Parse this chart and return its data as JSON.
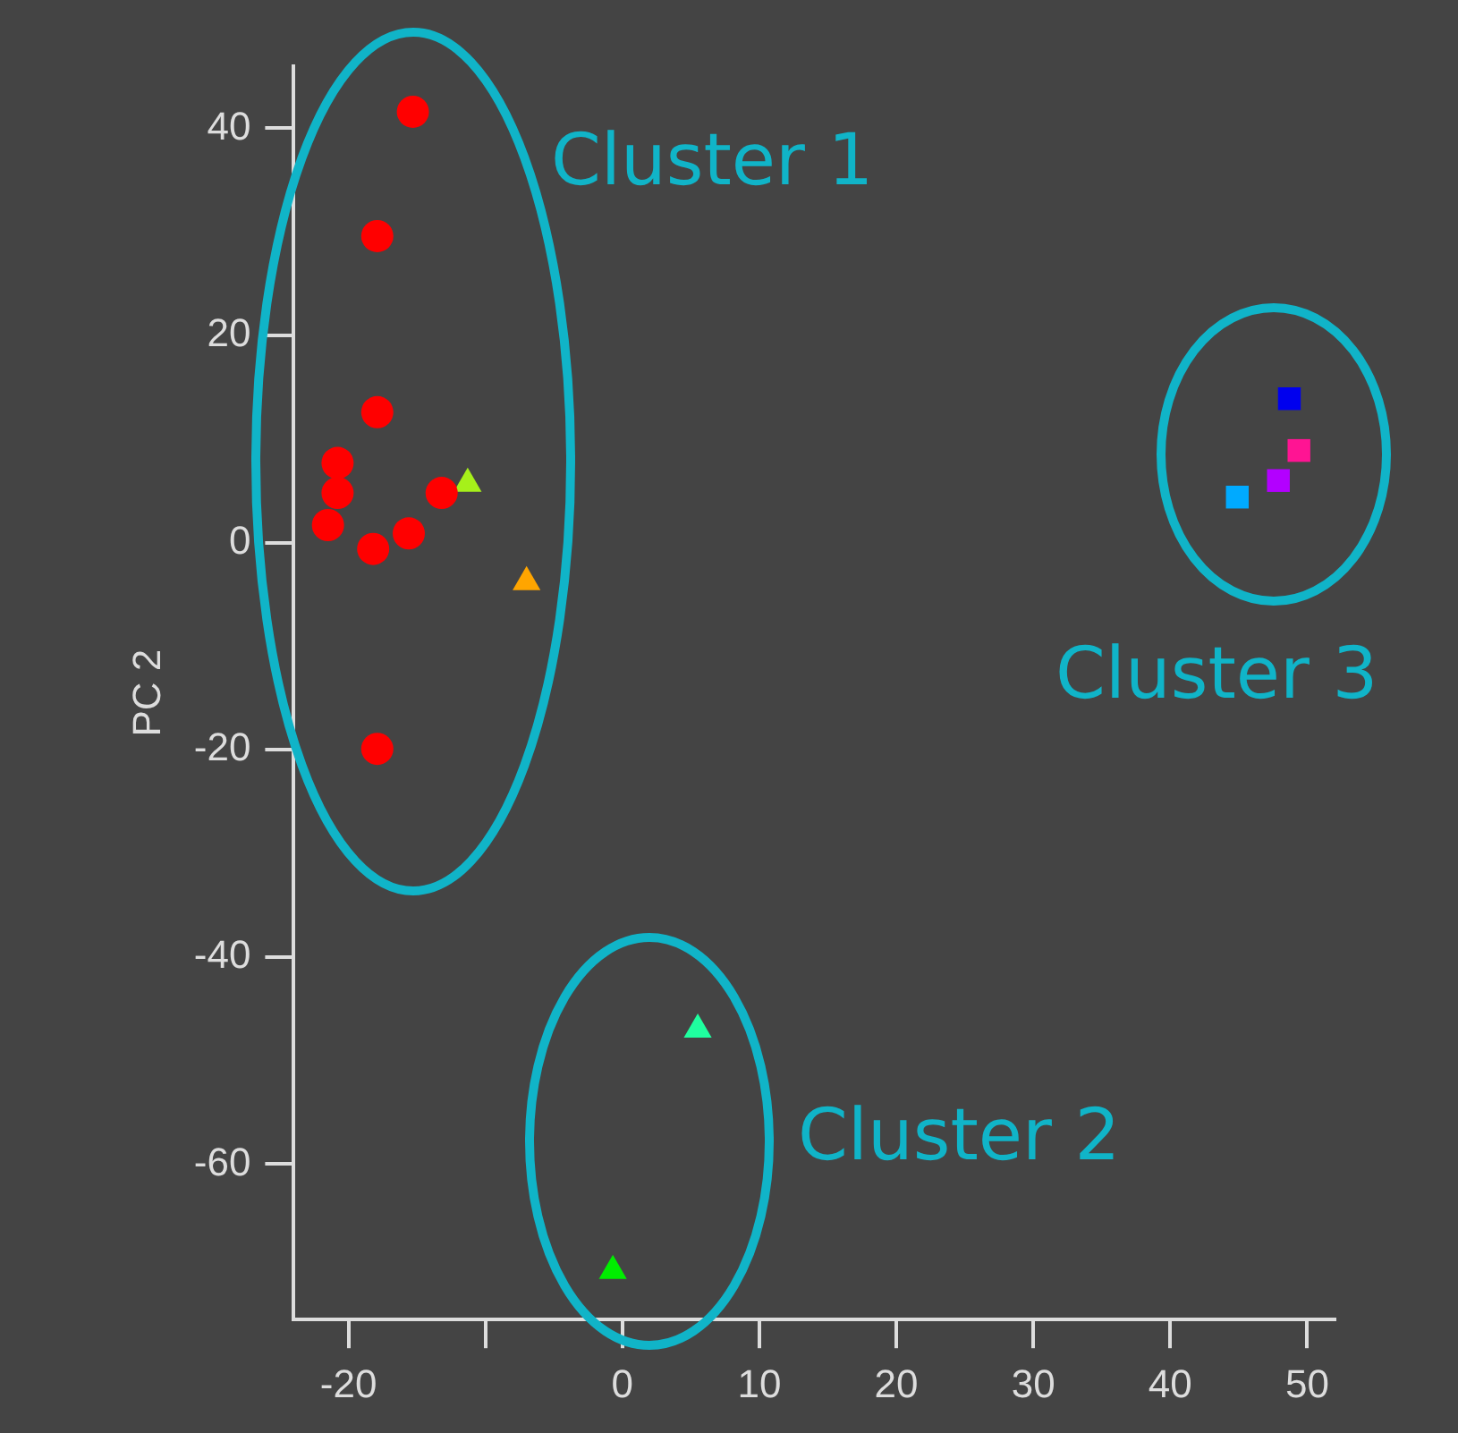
{
  "chart_data": {
    "type": "scatter",
    "ylabel": "PC 2",
    "xlim": [
      -24,
      52
    ],
    "ylim": [
      -75,
      46
    ],
    "xticks": [
      -20,
      {
        "value": -10,
        "label": null
      },
      0,
      10,
      20,
      30,
      40,
      50
    ],
    "yticks": [
      -60,
      -40,
      -20,
      0,
      20,
      40
    ],
    "grid": false,
    "legend": false,
    "annotations": [
      "Cluster 1",
      "Cluster 2",
      "Cluster 3"
    ],
    "series": [
      {
        "marker": "circle",
        "color": "#ff0000",
        "x": [
          -15.3,
          -17.9,
          -17.9,
          -20.8,
          -20.8,
          -21.5,
          -18.2,
          -15.6,
          -13.2,
          -17.9
        ],
        "values": [
          41.6,
          29.6,
          12.6,
          7.7,
          4.8,
          1.7,
          -0.6,
          0.9,
          4.8,
          -19.9
        ]
      },
      {
        "marker": "triangle",
        "colors": [
          "#a6f01a",
          "#ffa500",
          "#1fff9f",
          "#00ee00"
        ],
        "x": [
          -11.3,
          -7.0,
          5.5,
          -0.7
        ],
        "values": [
          5.7,
          -3.8,
          -47.0,
          -70.3
        ]
      },
      {
        "marker": "square",
        "colors": [
          "#0000ee",
          "#ff1493",
          "#b300ff",
          "#00aaff"
        ],
        "x": [
          48.7,
          49.4,
          47.9,
          44.9
        ],
        "values": [
          13.9,
          8.9,
          6.0,
          4.4
        ]
      }
    ]
  }
}
